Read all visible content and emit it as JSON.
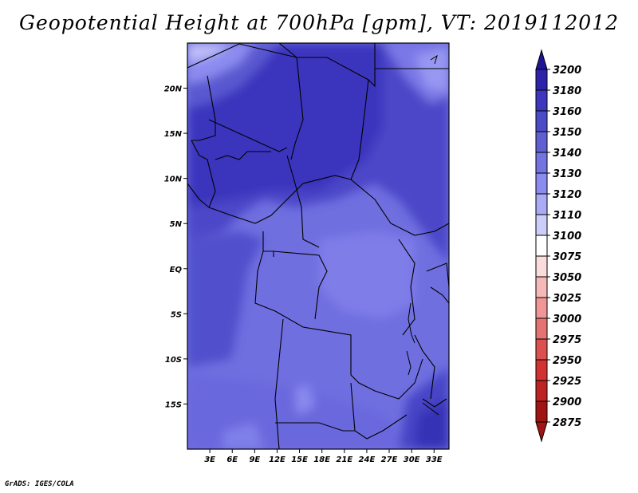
{
  "title": "Geopotential Height at 700hPa [gpm], VT: 2019112012",
  "credit": "GrADS: IGES/COLA",
  "map": {
    "lon_range": [
      0,
      35
    ],
    "lat_range": [
      -20,
      25
    ],
    "x_ticks": [
      "3E",
      "6E",
      "9E",
      "12E",
      "15E",
      "18E",
      "21E",
      "24E",
      "27E",
      "30E",
      "33E"
    ],
    "x_tick_values": [
      3,
      6,
      9,
      12,
      15,
      18,
      21,
      24,
      27,
      30,
      33
    ],
    "y_ticks": [
      "20N",
      "15N",
      "10N",
      "5N",
      "EQ",
      "5S",
      "10S",
      "15S"
    ],
    "y_tick_values": [
      20,
      15,
      10,
      5,
      0,
      -5,
      -10,
      -15
    ]
  },
  "colorbar": {
    "labels": [
      "3200",
      "3180",
      "3160",
      "3150",
      "3140",
      "3130",
      "3120",
      "3110",
      "3100",
      "3075",
      "3050",
      "3025",
      "3000",
      "2975",
      "2950",
      "2925",
      "2900",
      "2875"
    ],
    "colors": [
      "#1e1496",
      "#2d23aa",
      "#3c37be",
      "#4b4bc8",
      "#5f5fd2",
      "#7373e1",
      "#8c8cf0",
      "#aaaaf5",
      "#cdcdfa",
      "#ffffff",
      "#fadcdc",
      "#f5b9b9",
      "#f09696",
      "#e67373",
      "#dc5050",
      "#d23232",
      "#be2323",
      "#a01414"
    ]
  }
}
